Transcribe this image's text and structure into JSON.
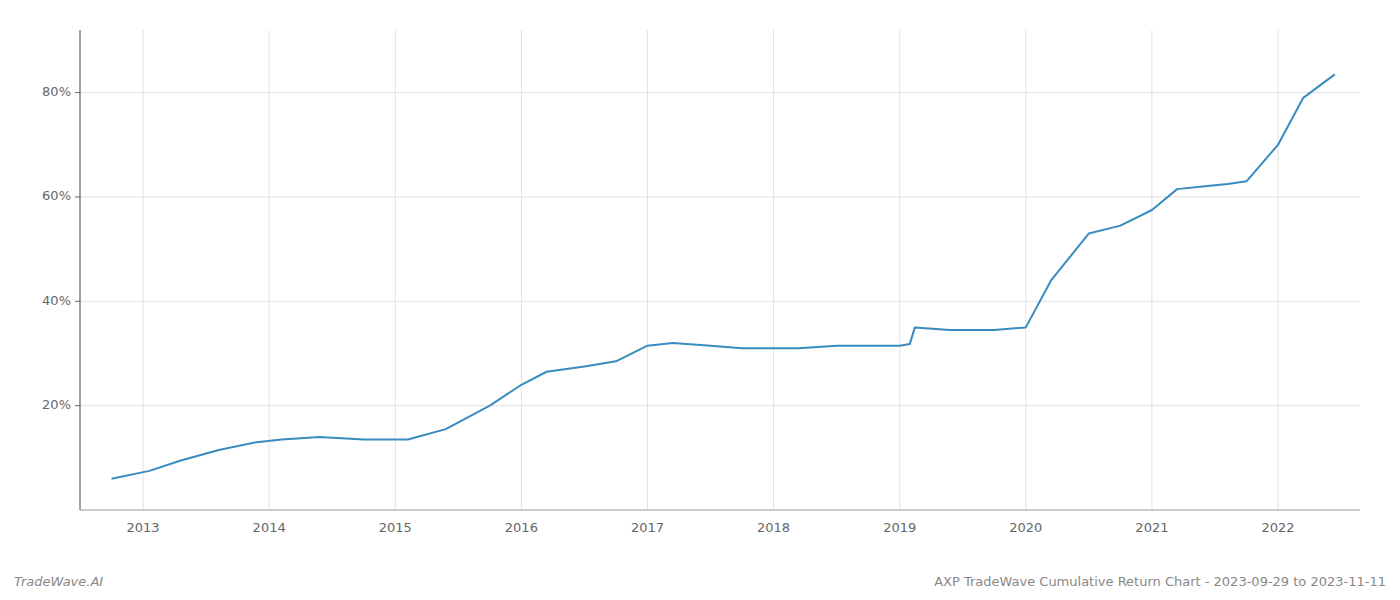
{
  "chart_data": {
    "type": "line",
    "title": "AXP TradeWave Cumulative Return Chart - 2023-09-29 to 2023-11-11",
    "annotations": [
      "TradeWave.AI"
    ],
    "color": "#3a8bbf",
    "x": [
      2012.75,
      2013.05,
      2013.3,
      2013.6,
      2013.9,
      2014.1,
      2014.4,
      2014.75,
      2015.0,
      2015.1,
      2015.4,
      2015.75,
      2016.0,
      2016.2,
      2016.5,
      2016.75,
      2017.0,
      2017.2,
      2017.5,
      2017.75,
      2018.0,
      2018.2,
      2018.5,
      2018.75,
      2019.0,
      2019.08,
      2019.12,
      2019.4,
      2019.75,
      2020.0,
      2020.2,
      2020.5,
      2020.75,
      2021.0,
      2021.2,
      2021.4,
      2021.6,
      2021.75,
      2022.0,
      2022.2,
      2022.45
    ],
    "values": [
      6.0,
      7.5,
      9.5,
      11.5,
      13.0,
      13.5,
      14.0,
      13.5,
      13.5,
      13.5,
      15.5,
      20.0,
      24.0,
      26.5,
      27.5,
      28.5,
      31.5,
      32.0,
      31.5,
      31.0,
      31.0,
      31.0,
      31.5,
      31.5,
      31.5,
      31.8,
      35.0,
      34.5,
      34.5,
      35.0,
      44.0,
      53.0,
      54.5,
      57.5,
      61.5,
      62.0,
      62.5,
      63.0,
      70.0,
      79.0,
      83.5
    ],
    "xlim": [
      2012.5,
      2022.65
    ],
    "xticks": [
      2013,
      2014,
      2015,
      2016,
      2017,
      2018,
      2019,
      2020,
      2021,
      2022
    ],
    "ylim": [
      0,
      92
    ],
    "yticks": [
      {
        "value": 20,
        "label": "20%"
      },
      {
        "value": 40,
        "label": "40%"
      },
      {
        "value": 60,
        "label": "60%"
      },
      {
        "value": 80,
        "label": "80%"
      }
    ],
    "grid": true
  }
}
